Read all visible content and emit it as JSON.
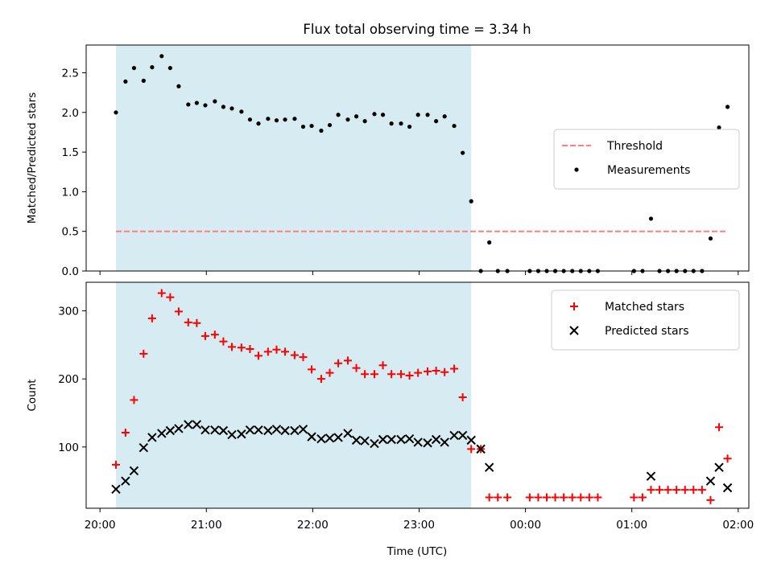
{
  "figure": {
    "title": "Flux total observing time = 3.34 h",
    "xlabel": "Time (UTC)"
  },
  "chart_data": [
    {
      "type": "scatter",
      "title": "Flux total observing time = 3.34 h",
      "ylabel": "Matched/Predicted stars",
      "x_unit": "hours since 20:00 UTC (axis tick labels show clock time)",
      "xlim": [
        -0.13,
        6.1
      ],
      "ylim": [
        0.0,
        2.85
      ],
      "yticks": [
        0.0,
        0.5,
        1.0,
        1.5,
        2.0,
        2.5
      ],
      "ytick_labels": [
        "0.0",
        "0.5",
        "1.0",
        "1.5",
        "2.0",
        "2.5"
      ],
      "xticks": [
        0,
        1,
        2,
        3,
        4,
        5,
        6
      ],
      "xtick_labels": [
        "20:00",
        "21:00",
        "22:00",
        "23:00",
        "00:00",
        "01:00",
        "02:00"
      ],
      "shaded_span": {
        "x_start": 0.15,
        "x_end": 3.49,
        "color": "#add8e6"
      },
      "threshold": {
        "name": "Threshold",
        "y": 0.5,
        "x_start": 0.15,
        "x_end": 5.9,
        "color": "#ff7f7f"
      },
      "legend": {
        "placement": "center-right",
        "entries": [
          "Threshold",
          "Measurements"
        ]
      },
      "series": [
        {
          "name": "Measurements",
          "color": "#000000",
          "x": [
            0.15,
            0.24,
            0.32,
            0.41,
            0.49,
            0.58,
            0.66,
            0.74,
            0.83,
            0.91,
            0.99,
            1.08,
            1.16,
            1.24,
            1.33,
            1.41,
            1.49,
            1.58,
            1.66,
            1.74,
            1.83,
            1.91,
            1.99,
            2.08,
            2.16,
            2.24,
            2.33,
            2.41,
            2.49,
            2.58,
            2.66,
            2.74,
            2.83,
            2.91,
            2.99,
            3.08,
            3.16,
            3.24,
            3.33,
            3.41,
            3.49,
            3.58,
            3.66,
            3.74,
            3.83,
            4.04,
            4.12,
            4.2,
            4.28,
            4.36,
            4.44,
            4.52,
            4.6,
            4.68,
            5.02,
            5.1,
            5.18,
            5.26,
            5.34,
            5.42,
            5.5,
            5.58,
            5.66,
            5.74,
            5.82,
            5.9
          ],
          "y": [
            2.0,
            2.39,
            2.56,
            2.4,
            2.57,
            2.71,
            2.56,
            2.33,
            2.1,
            2.12,
            2.09,
            2.14,
            2.07,
            2.05,
            2.01,
            1.91,
            1.86,
            1.92,
            1.9,
            1.91,
            1.92,
            1.82,
            1.83,
            1.77,
            1.84,
            1.97,
            1.91,
            1.95,
            1.89,
            1.98,
            1.97,
            1.86,
            1.86,
            1.82,
            1.97,
            1.97,
            1.89,
            1.95,
            1.83,
            1.49,
            0.88,
            0.0,
            0.36,
            0.0,
            0.0,
            0.0,
            0.0,
            0.0,
            0.0,
            0.0,
            0.0,
            0.0,
            0.0,
            0.0,
            0.0,
            0.0,
            0.66,
            0.0,
            0.0,
            0.0,
            0.0,
            0.0,
            0.0,
            0.41,
            1.81,
            2.07
          ]
        }
      ]
    },
    {
      "type": "scatter",
      "ylabel": "Count",
      "xlabel": "Time (UTC)",
      "x_unit": "hours since 20:00 UTC (axis tick labels show clock time)",
      "xlim": [
        -0.13,
        6.1
      ],
      "ylim": [
        10,
        342
      ],
      "yticks": [
        100,
        200,
        300
      ],
      "ytick_labels": [
        "100",
        "200",
        "300"
      ],
      "xticks": [
        0,
        1,
        2,
        3,
        4,
        5,
        6
      ],
      "xtick_labels": [
        "20:00",
        "21:00",
        "22:00",
        "23:00",
        "00:00",
        "01:00",
        "02:00"
      ],
      "shaded_span": {
        "x_start": 0.15,
        "x_end": 3.49,
        "color": "#add8e6"
      },
      "legend": {
        "placement": "top-right",
        "entries": [
          "Matched stars",
          "Predicted stars"
        ]
      },
      "series": [
        {
          "name": "Matched stars",
          "marker": "+",
          "color": "#ff0000",
          "x": [
            0.15,
            0.24,
            0.32,
            0.41,
            0.49,
            0.58,
            0.66,
            0.74,
            0.83,
            0.91,
            0.99,
            1.08,
            1.16,
            1.24,
            1.33,
            1.41,
            1.49,
            1.58,
            1.66,
            1.74,
            1.83,
            1.91,
            1.99,
            2.08,
            2.16,
            2.24,
            2.33,
            2.41,
            2.49,
            2.58,
            2.66,
            2.74,
            2.83,
            2.91,
            2.99,
            3.08,
            3.16,
            3.24,
            3.33,
            3.41,
            3.49,
            3.58,
            3.66,
            3.74,
            3.83,
            4.04,
            4.12,
            4.2,
            4.28,
            4.36,
            4.44,
            4.52,
            4.6,
            4.68,
            5.02,
            5.1,
            5.18,
            5.26,
            5.34,
            5.42,
            5.5,
            5.58,
            5.66,
            5.74,
            5.82,
            5.9
          ],
          "y": [
            74,
            121,
            169,
            237,
            289,
            326,
            320,
            299,
            283,
            282,
            263,
            265,
            255,
            247,
            246,
            244,
            234,
            240,
            243,
            240,
            235,
            232,
            214,
            200,
            209,
            223,
            227,
            216,
            207,
            207,
            220,
            207,
            207,
            205,
            209,
            211,
            212,
            210,
            215,
            173,
            97,
            97,
            26,
            26,
            26,
            26,
            26,
            26,
            26,
            26,
            26,
            26,
            26,
            26,
            26,
            26,
            37,
            37,
            37,
            37,
            37,
            37,
            37,
            22,
            129,
            83
          ]
        },
        {
          "name": "Predicted stars",
          "marker": "x",
          "color": "#000000",
          "x": [
            0.15,
            0.24,
            0.32,
            0.41,
            0.49,
            0.58,
            0.66,
            0.74,
            0.83,
            0.91,
            0.99,
            1.08,
            1.16,
            1.24,
            1.33,
            1.41,
            1.49,
            1.58,
            1.66,
            1.74,
            1.83,
            1.91,
            1.99,
            2.08,
            2.16,
            2.24,
            2.33,
            2.41,
            2.49,
            2.58,
            2.66,
            2.74,
            2.83,
            2.91,
            2.99,
            3.08,
            3.16,
            3.24,
            3.33,
            3.41,
            3.49,
            3.58,
            3.66,
            5.18,
            5.74,
            5.82,
            5.9
          ],
          "y": [
            38,
            50,
            65,
            99,
            114,
            120,
            124,
            127,
            133,
            133,
            125,
            125,
            124,
            118,
            119,
            125,
            125,
            124,
            126,
            124,
            124,
            126,
            115,
            112,
            113,
            114,
            120,
            110,
            109,
            105,
            111,
            111,
            111,
            112,
            107,
            106,
            111,
            107,
            117,
            117,
            110,
            97,
            70,
            57,
            50,
            70,
            40
          ]
        }
      ]
    }
  ]
}
